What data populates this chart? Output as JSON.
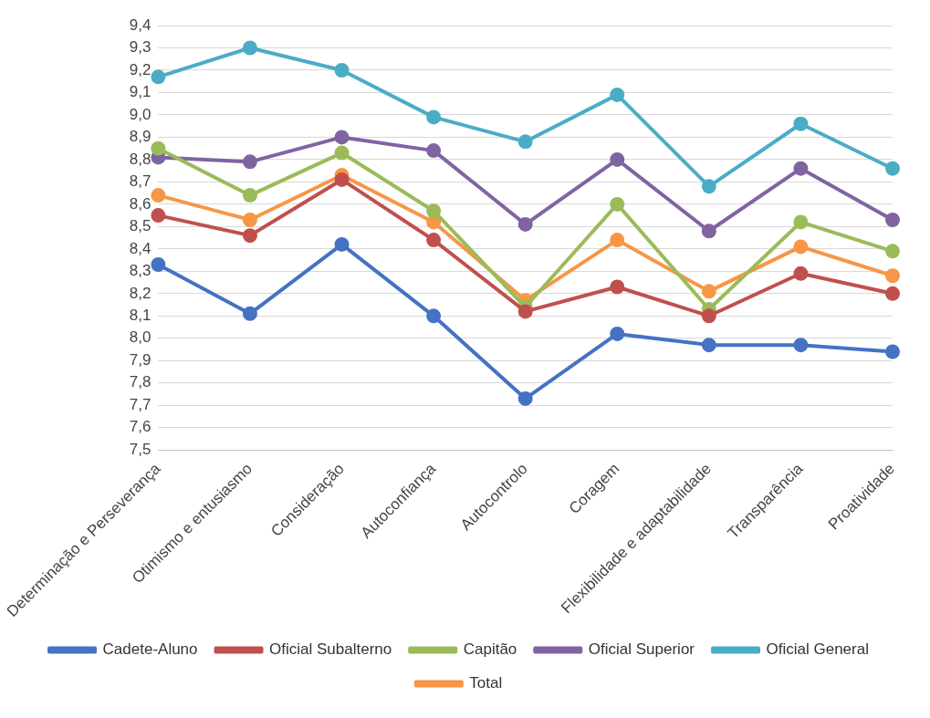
{
  "chart_data": {
    "type": "line",
    "categories": [
      "Determinação e Perseverança",
      "Otimismo e entusiasmo",
      "Consideração",
      "Autoconfiança",
      "Autocontrolo",
      "Coragem",
      "Flexibilidade e adaptabilidade",
      "Transparência",
      "Proatividade"
    ],
    "series": [
      {
        "name": "Cadete-Aluno",
        "color": "#4472c4",
        "values": [
          8.33,
          8.11,
          8.42,
          8.1,
          7.73,
          8.02,
          7.97,
          7.97,
          7.94
        ]
      },
      {
        "name": "Oficial Subalterno",
        "color": "#c0504d",
        "values": [
          8.55,
          8.46,
          8.71,
          8.44,
          8.12,
          8.23,
          8.1,
          8.29,
          8.2
        ]
      },
      {
        "name": "Capitão",
        "color": "#9bbb59",
        "values": [
          8.85,
          8.64,
          8.83,
          8.57,
          8.14,
          8.6,
          8.13,
          8.52,
          8.39
        ]
      },
      {
        "name": "Oficial Superior",
        "color": "#8064a2",
        "values": [
          8.81,
          8.79,
          8.9,
          8.84,
          8.51,
          8.8,
          8.48,
          8.76,
          8.53
        ]
      },
      {
        "name": "Oficial General",
        "color": "#4bacc6",
        "values": [
          9.17,
          9.3,
          9.2,
          8.99,
          8.88,
          9.09,
          8.68,
          8.96,
          8.76
        ]
      },
      {
        "name": "Total",
        "color": "#f79646",
        "values": [
          8.64,
          8.53,
          8.73,
          8.52,
          8.17,
          8.44,
          8.21,
          8.41,
          8.28
        ]
      }
    ],
    "ylim": [
      7.5,
      9.4
    ],
    "yticks": [
      {
        "value": 7.5,
        "label": "7,5"
      },
      {
        "value": 7.6,
        "label": "7,6"
      },
      {
        "value": 7.7,
        "label": "7,7"
      },
      {
        "value": 7.8,
        "label": "7,8"
      },
      {
        "value": 7.9,
        "label": "7,9"
      },
      {
        "value": 8.0,
        "label": "8,0"
      },
      {
        "value": 8.1,
        "label": "8,1"
      },
      {
        "value": 8.2,
        "label": "8,2"
      },
      {
        "value": 8.3,
        "label": "8,3"
      },
      {
        "value": 8.4,
        "label": "8,4"
      },
      {
        "value": 8.5,
        "label": "8,5"
      },
      {
        "value": 8.6,
        "label": "8,6"
      },
      {
        "value": 8.7,
        "label": "8,7"
      },
      {
        "value": 8.8,
        "label": "8,8"
      },
      {
        "value": 8.9,
        "label": "8,9"
      },
      {
        "value": 9.0,
        "label": "9,0"
      },
      {
        "value": 9.1,
        "label": "9,1"
      },
      {
        "value": 9.2,
        "label": "9,2"
      },
      {
        "value": 9.3,
        "label": "9,3"
      },
      {
        "value": 9.4,
        "label": "9,4"
      }
    ],
    "grid": "y",
    "legend": "bottom",
    "marker": "circle",
    "line_style": "solid"
  }
}
